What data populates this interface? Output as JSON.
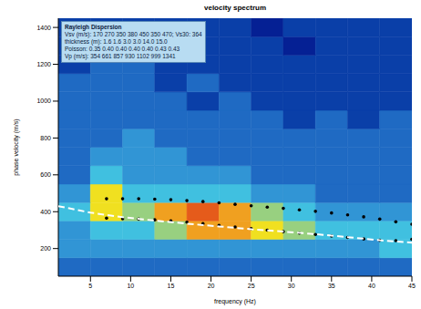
{
  "chart_data": {
    "type": "heatmap",
    "title": "velocity spectrum",
    "x_label": "frequency (Hz)",
    "y_label": "phase velocity (m/s)",
    "xlim": [
      1,
      45
    ],
    "ylim": [
      50,
      1450
    ],
    "xticks": [
      5,
      10,
      15,
      20,
      25,
      30,
      35,
      40,
      45
    ],
    "yticks": [
      200,
      400,
      600,
      800,
      1000,
      1200,
      1400
    ],
    "grid": false,
    "annotations": [
      "Rayleigh Dispersion",
      "Vsv (m/s): 170 270 350 380 450 350 470; Vs30: 364",
      "thickness (m): 1.6 1.6 3.0 3.0 14.0 15.0",
      "Poisson: 0.35 0.40 0.40 0.40 0.40 0.43 0.43",
      "Vp (m/s): 354 661 857 930 1102 999 1341"
    ],
    "heatmap": {
      "x_edges": [
        1,
        5,
        9,
        13,
        17,
        21,
        25,
        29,
        33,
        37,
        41,
        45
      ],
      "y_edges": [
        50,
        150,
        250,
        350,
        450,
        550,
        650,
        750,
        850,
        950,
        1050,
        1150,
        1250,
        1350,
        1450
      ],
      "color_range": [
        0,
        10
      ],
      "cells": [
        [
          3,
          3,
          3,
          3,
          3,
          3,
          3,
          3,
          3,
          3,
          3
        ],
        [
          4,
          4,
          4,
          4,
          4,
          4,
          4,
          4,
          4,
          4,
          5
        ],
        [
          4,
          5,
          5,
          6,
          8,
          8,
          7,
          6,
          5,
          5,
          5
        ],
        [
          5,
          7,
          6,
          8,
          9,
          8,
          6,
          5,
          4,
          4,
          4
        ],
        [
          4,
          7,
          5,
          5,
          5,
          5,
          4,
          4,
          3,
          3,
          3
        ],
        [
          3,
          5,
          4,
          4,
          4,
          4,
          3,
          3,
          3,
          3,
          3
        ],
        [
          3,
          4,
          4,
          4,
          3,
          3,
          3,
          3,
          3,
          3,
          3
        ],
        [
          3,
          3,
          4,
          3,
          3,
          3,
          3,
          3,
          3,
          3,
          3
        ],
        [
          3,
          3,
          3,
          3,
          3,
          3,
          3,
          2,
          3,
          2,
          3
        ],
        [
          3,
          3,
          3,
          3,
          2,
          3,
          2,
          2,
          2,
          2,
          2
        ],
        [
          3,
          3,
          3,
          2,
          3,
          2,
          2,
          2,
          2,
          2,
          2
        ],
        [
          2,
          3,
          3,
          2,
          2,
          2,
          2,
          2,
          2,
          2,
          2
        ],
        [
          2,
          2,
          3,
          2,
          2,
          2,
          2,
          1,
          2,
          2,
          2
        ],
        [
          2,
          2,
          2,
          2,
          2,
          2,
          1,
          2,
          2,
          2,
          2
        ]
      ]
    },
    "series": [
      {
        "color": "#000000",
        "marker": "circle",
        "line_style": "none",
        "x": [
          7,
          9,
          11,
          13,
          15,
          17,
          19,
          21,
          23,
          25,
          27,
          29,
          31,
          33,
          35,
          37,
          39,
          41,
          43,
          45
        ],
        "values": [
          470,
          470,
          470,
          468,
          465,
          460,
          455,
          448,
          440,
          432,
          425,
          418,
          410,
          402,
          393,
          383,
          372,
          360,
          345,
          332
        ]
      },
      {
        "color": "#000000",
        "marker": "circle",
        "line_style": "none",
        "x": [
          7,
          9,
          11,
          13,
          15,
          17,
          19,
          21,
          23,
          25,
          27,
          29,
          31,
          33,
          35,
          37,
          39,
          41,
          43,
          45
        ],
        "values": [
          365,
          362,
          360,
          356,
          350,
          343,
          335,
          326,
          317,
          308,
          300,
          292,
          284,
          276,
          268,
          260,
          252,
          245,
          243,
          250
        ]
      },
      {
        "color": "#ffffff",
        "marker": "none",
        "line_style": "dashed",
        "x": [
          1,
          5,
          9,
          13,
          17,
          21,
          25,
          29,
          33,
          37,
          41,
          45
        ],
        "values": [
          430,
          395,
          370,
          352,
          335,
          320,
          305,
          292,
          278,
          262,
          245,
          232
        ]
      }
    ]
  }
}
